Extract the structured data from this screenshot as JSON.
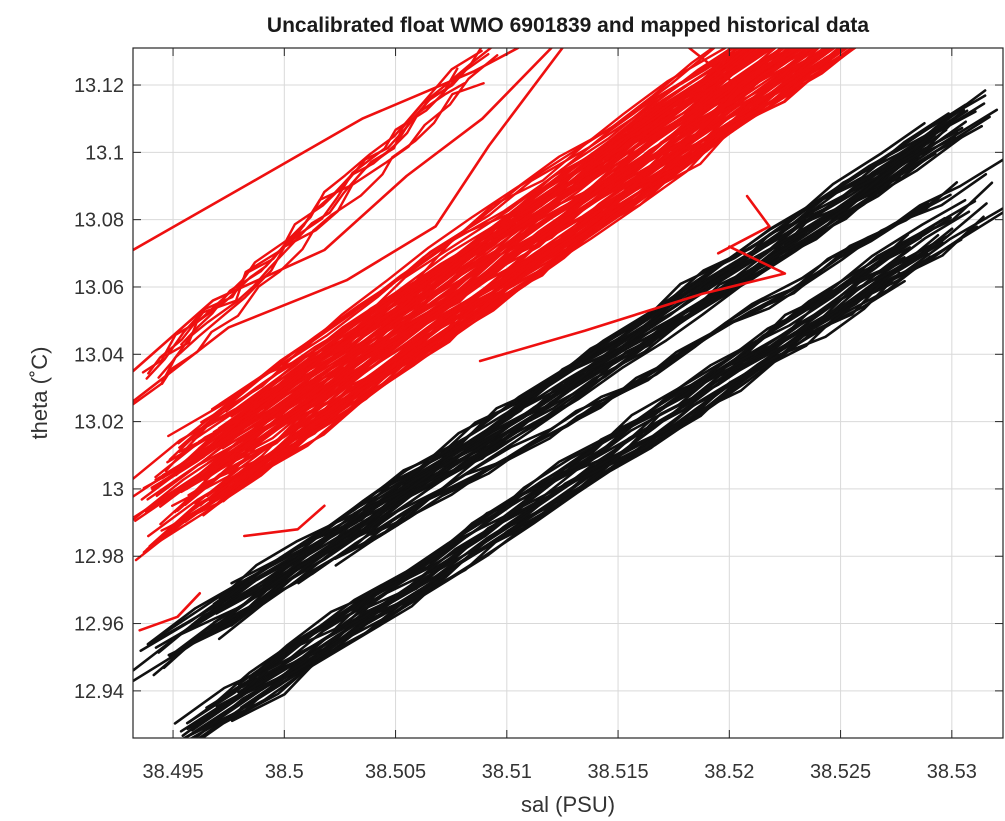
{
  "chart_data": {
    "type": "line",
    "title": "Uncalibrated float WMO 6901839 and mapped historical data",
    "xlabel": "sal (PSU)",
    "ylabel": "theta (˚C)",
    "xlim": [
      38.4932,
      38.5323
    ],
    "ylim": [
      12.926,
      13.131
    ],
    "x_ticks": [
      38.495,
      38.5,
      38.505,
      38.51,
      38.515,
      38.52,
      38.525,
      38.53
    ],
    "x_tick_labels": [
      "38.495",
      "38.5",
      "38.505",
      "38.51",
      "38.515",
      "38.52",
      "38.525",
      "38.53"
    ],
    "y_ticks": [
      12.94,
      12.96,
      12.98,
      13.0,
      13.02,
      13.04,
      13.06,
      13.08,
      13.1,
      13.12
    ],
    "y_tick_labels": [
      "12.94",
      "12.96",
      "12.98",
      "13",
      "13.02",
      "13.04",
      "13.06",
      "13.08",
      "13.1",
      "13.12"
    ],
    "grid": true,
    "colors": {
      "float": "#ee1010",
      "historical": "#111111"
    },
    "series": [
      {
        "group": "historical",
        "color": "#111111",
        "bands": [
          {
            "x_start": 38.4932,
            "y_start": 12.946,
            "x_end": 38.5323,
            "y_end": 13.117,
            "width": 0.011,
            "count": 30
          },
          {
            "x_start": 38.5002,
            "y_start": 12.971,
            "x_end": 38.5323,
            "y_end": 13.098,
            "width": 0.004,
            "count": 6
          },
          {
            "x_start": 38.4945,
            "y_start": 12.922,
            "x_end": 38.5323,
            "y_end": 13.087,
            "width": 0.012,
            "count": 28
          }
        ]
      },
      {
        "group": "float",
        "color": "#ee1010",
        "bands": [
          {
            "x_start": 38.4932,
            "y_start": 12.992,
            "x_end": 38.5323,
            "y_end": 13.178,
            "width": 0.03,
            "count": 95
          },
          {
            "x_start": 38.4932,
            "y_start": 13.028,
            "x_end": 38.5095,
            "y_end": 13.131,
            "width": 0.012,
            "count": 8
          }
        ],
        "lines": [
          {
            "x": [
              38.4932,
              38.4985,
              38.5035,
              38.5085,
              38.5105
            ],
            "y": [
              13.071,
              13.091,
              13.11,
              13.124,
              13.131
            ]
          },
          {
            "x": [
              38.4932,
              38.4968,
              38.5018,
              38.5055,
              38.5089,
              38.512
            ],
            "y": [
              13.035,
              13.056,
              13.071,
              13.093,
              13.11,
              13.131
            ]
          },
          {
            "x": [
              38.4932,
              38.4975,
              38.5028,
              38.5068,
              38.5092,
              38.5125
            ],
            "y": [
              13.026,
              13.048,
              13.062,
              13.078,
              13.102,
              13.131
            ]
          },
          {
            "x": [
              38.4935,
              38.4952,
              38.4962
            ],
            "y": [
              12.958,
              12.962,
              12.969
            ]
          },
          {
            "x": [
              38.4982,
              38.5006,
              38.5018
            ],
            "y": [
              12.986,
              12.988,
              12.995
            ]
          },
          {
            "x": [
              38.5088,
              38.5135,
              38.5188,
              38.5225,
              38.52
            ],
            "y": [
              13.038,
              13.047,
              13.058,
              13.064,
              13.072
            ]
          },
          {
            "x": [
              38.5182,
              38.5205,
              38.5192,
              38.5178
            ],
            "y": [
              13.131,
              13.119,
              13.11,
              13.101
            ]
          },
          {
            "x": [
              38.5195,
              38.5218,
              38.5208
            ],
            "y": [
              13.07,
              13.078,
              13.087
            ]
          }
        ]
      }
    ]
  }
}
